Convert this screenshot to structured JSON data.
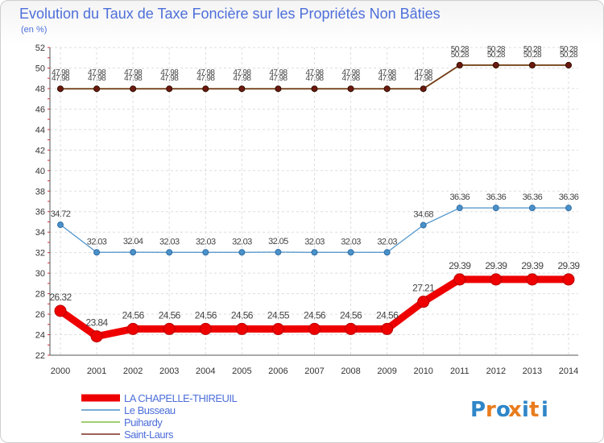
{
  "chart_data": {
    "type": "line",
    "title": "Evolution du Taux de Taxe Foncière sur les Propriétés Non Bâties",
    "ylabel": "(en %)",
    "xlabel": "",
    "x": [
      "2000",
      "2001",
      "2002",
      "2003",
      "2004",
      "2005",
      "2006",
      "2007",
      "2008",
      "2009",
      "2010",
      "2011",
      "2012",
      "2013",
      "2014"
    ],
    "ylim": [
      22,
      52
    ],
    "yticks": [
      "22",
      "24",
      "26",
      "28",
      "30",
      "32",
      "34",
      "36",
      "38",
      "40",
      "42",
      "44",
      "46",
      "48",
      "50",
      "52"
    ],
    "series": [
      {
        "name": "Puihardy",
        "color": "#80c040",
        "values": [
          47.98,
          47.98,
          47.98,
          47.98,
          47.98,
          47.98,
          47.98,
          47.98,
          47.98,
          47.98,
          47.98,
          50.28,
          50.28,
          50.28,
          50.28
        ],
        "labels": [
          "47.98",
          "47.98",
          "47.98",
          "47.98",
          "47.98",
          "47.98",
          "47.98",
          "47.98",
          "47.98",
          "47.98",
          "47.98",
          "50.28",
          "50.28",
          "50.28",
          "50.28"
        ]
      },
      {
        "name": "Saint-Laurs",
        "color": "#7b2c1e",
        "values": [
          47.98,
          47.98,
          47.98,
          47.98,
          47.98,
          47.98,
          47.98,
          47.98,
          47.98,
          47.98,
          47.98,
          50.28,
          50.28,
          50.28,
          50.28
        ],
        "labels": [
          "47.98",
          "47.98",
          "47.98",
          "47.98",
          "47.98",
          "47.98",
          "47.98",
          "47.98",
          "47.98",
          "47.98",
          "47.98",
          "50.28",
          "50.28",
          "50.28",
          "50.28"
        ]
      },
      {
        "name": "Le Busseau",
        "color": "#4b91c9",
        "values": [
          34.72,
          32.03,
          32.04,
          32.03,
          32.03,
          32.03,
          32.05,
          32.03,
          32.03,
          32.03,
          34.68,
          36.36,
          36.36,
          36.36,
          36.36
        ],
        "labels": [
          "34.72",
          "32.03",
          "32.04",
          "32.03",
          "32.03",
          "32.03",
          "32.05",
          "32.03",
          "32.03",
          "32.03",
          "34.68",
          "36.36",
          "36.36",
          "36.36",
          "36.36"
        ]
      },
      {
        "name": "LA CHAPELLE-THIREUIL",
        "color": "#ee0000",
        "values": [
          26.32,
          23.84,
          24.56,
          24.56,
          24.56,
          24.56,
          24.55,
          24.56,
          24.56,
          24.56,
          27.21,
          29.39,
          29.39,
          29.39,
          29.39
        ],
        "labels": [
          "26.32",
          "23.84",
          "24.56",
          "24.56",
          "24.56",
          "24.56",
          "24.55",
          "24.56",
          "24.56",
          "24.56",
          "27.21",
          "29.39",
          "29.39",
          "29.39",
          "29.39"
        ]
      }
    ],
    "legend": [
      "LA CHAPELLE-THIREUIL",
      "Le Busseau",
      "Puihardy",
      "Saint-Laurs"
    ],
    "legend_position": "bottom-left"
  },
  "logo": {
    "text": "Proxiti",
    "letters": [
      "P",
      "r",
      "o",
      "x",
      "i",
      "t",
      "i"
    ]
  }
}
